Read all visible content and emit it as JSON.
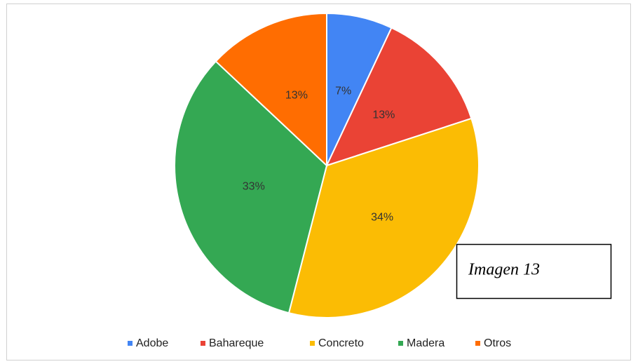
{
  "chart_data": {
    "type": "pie",
    "categories": [
      "Adobe",
      "Bahareque",
      "Concreto",
      "Madera",
      "Otros"
    ],
    "values": [
      7,
      13,
      34,
      33,
      13
    ],
    "value_labels": [
      "7%",
      "13%",
      "34%",
      "33%",
      "13%"
    ],
    "colors": [
      "#4285f4",
      "#ea4335",
      "#fbbc04",
      "#34a853",
      "#ff6d01"
    ],
    "legend": "bottom",
    "annotation": "Imagen 13"
  }
}
